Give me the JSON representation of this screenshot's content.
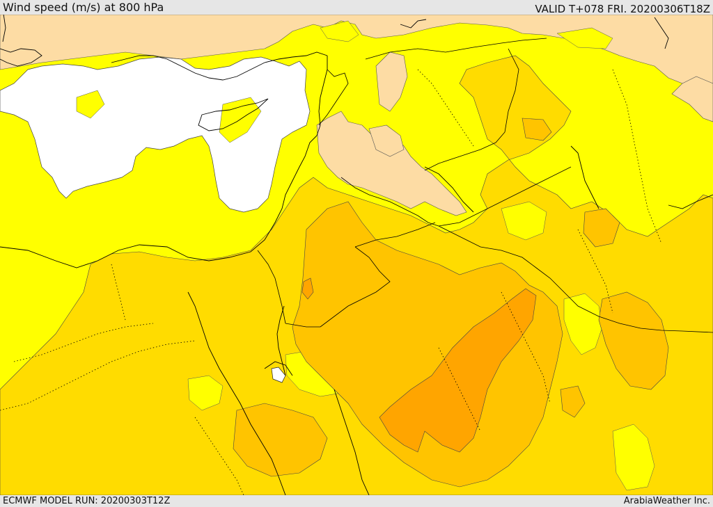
{
  "header": {
    "title": "Wind speed (m/s) at 800 hPa",
    "valid": "VALID T+078 FRI. 20200306T18Z"
  },
  "footer": {
    "model_run": "ECMWF MODEL RUN: 20200303T12Z",
    "credit": "ArabiaWeather Inc."
  },
  "colors": {
    "white": "#ffffff",
    "peach": "#fddca4",
    "yellow": "#ffff00",
    "gold": "#ffdc00",
    "amber": "#ffc400",
    "orange": "#ffa500",
    "boundary": "#000000"
  }
}
